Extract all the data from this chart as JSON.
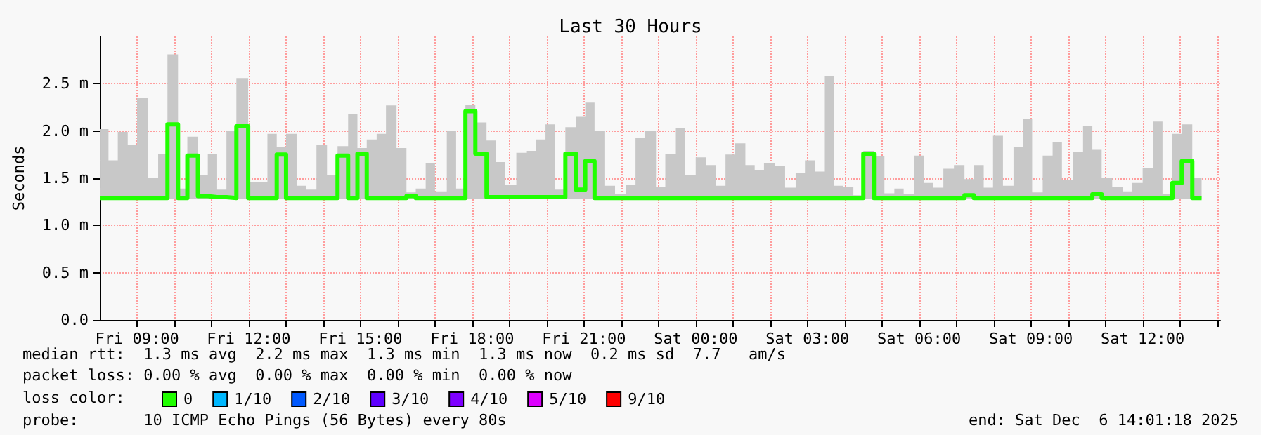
{
  "chart_data": {
    "type": "step",
    "title": "Last 30 Hours",
    "ylabel": "Seconds",
    "x": [
      "2025-12-05T08:00",
      "2025-12-05T08:14",
      "2025-12-05T08:29",
      "2025-12-05T08:45",
      "2025-12-05T09:00",
      "2025-12-05T09:17",
      "2025-12-05T09:34",
      "2025-12-05T09:49",
      "2025-12-05T10:06",
      "2025-12-05T10:21",
      "2025-12-05T10:38",
      "2025-12-05T10:54",
      "2025-12-05T11:09",
      "2025-12-05T11:24",
      "2025-12-05T11:40",
      "2025-12-05T11:59",
      "2025-12-05T12:14",
      "2025-12-05T12:30",
      "2025-12-05T12:45",
      "2025-12-05T13:00",
      "2025-12-05T13:17",
      "2025-12-05T13:32",
      "2025-12-05T13:49",
      "2025-12-05T14:06",
      "2025-12-05T14:23",
      "2025-12-05T14:40",
      "2025-12-05T14:55",
      "2025-12-05T15:10",
      "2025-12-05T15:26",
      "2025-12-05T15:41",
      "2025-12-05T15:58",
      "2025-12-05T16:14",
      "2025-12-05T16:29",
      "2025-12-05T16:45",
      "2025-12-05T17:00",
      "2025-12-05T17:19",
      "2025-12-05T17:34",
      "2025-12-05T17:49",
      "2025-12-05T18:05",
      "2025-12-05T18:23",
      "2025-12-05T18:38",
      "2025-12-05T18:53",
      "2025-12-05T19:11",
      "2025-12-05T19:28",
      "2025-12-05T19:43",
      "2025-12-05T19:58",
      "2025-12-05T20:13",
      "2025-12-05T20:30",
      "2025-12-05T20:47",
      "2025-12-05T21:02",
      "2025-12-05T21:17",
      "2025-12-05T21:34",
      "2025-12-05T21:50",
      "2025-12-05T22:08",
      "2025-12-05T22:23",
      "2025-12-05T22:38",
      "2025-12-05T22:56",
      "2025-12-05T23:11",
      "2025-12-05T23:28",
      "2025-12-05T23:43",
      "2025-12-06T00:00",
      "2025-12-06T00:17",
      "2025-12-06T00:32",
      "2025-12-06T00:48",
      "2025-12-06T01:03",
      "2025-12-06T01:20",
      "2025-12-06T01:35",
      "2025-12-06T01:50",
      "2025-12-06T02:08",
      "2025-12-06T02:24",
      "2025-12-06T02:41",
      "2025-12-06T02:56",
      "2025-12-06T03:12",
      "2025-12-06T03:28",
      "2025-12-06T03:43",
      "2025-12-06T03:58",
      "2025-12-06T04:14",
      "2025-12-06T04:30",
      "2025-12-06T04:47",
      "2025-12-06T05:04",
      "2025-12-06T05:20",
      "2025-12-06T05:35",
      "2025-12-06T05:52",
      "2025-12-06T06:08",
      "2025-12-06T06:23",
      "2025-12-06T06:39",
      "2025-12-06T06:56",
      "2025-12-06T07:13",
      "2025-12-06T07:28",
      "2025-12-06T07:44",
      "2025-12-06T07:59",
      "2025-12-06T08:15",
      "2025-12-06T08:32",
      "2025-12-06T08:47",
      "2025-12-06T09:02",
      "2025-12-06T09:19",
      "2025-12-06T09:35",
      "2025-12-06T09:50",
      "2025-12-06T10:08",
      "2025-12-06T10:24",
      "2025-12-06T10:39",
      "2025-12-06T10:54",
      "2025-12-06T11:11",
      "2025-12-06T11:28",
      "2025-12-06T11:43",
      "2025-12-06T12:00",
      "2025-12-06T12:17",
      "2025-12-06T12:32",
      "2025-12-06T12:48",
      "2025-12-06T13:03",
      "2025-12-06T13:20",
      "2025-12-06T13:35"
    ],
    "series": [
      {
        "name": "0",
        "color": "#20ff00",
        "values": [
          1.29,
          1.29,
          1.29,
          1.29,
          1.29,
          1.29,
          1.29,
          2.07,
          1.29,
          1.74,
          1.31,
          1.3,
          1.3,
          1.29,
          2.05,
          1.29,
          1.29,
          1.29,
          1.75,
          1.29,
          1.29,
          1.29,
          1.29,
          1.29,
          1.74,
          1.29,
          1.76,
          1.29,
          1.29,
          1.29,
          1.29,
          1.31,
          1.29,
          1.29,
          1.29,
          1.29,
          1.29,
          2.21,
          1.76,
          1.3,
          1.3,
          1.3,
          1.3,
          1.3,
          1.3,
          1.3,
          1.3,
          1.76,
          1.38,
          1.68,
          1.29,
          1.29,
          1.29,
          1.29,
          1.29,
          1.29,
          1.29,
          1.29,
          1.29,
          1.29,
          1.29,
          1.29,
          1.29,
          1.29,
          1.29,
          1.29,
          1.29,
          1.29,
          1.29,
          1.29,
          1.29,
          1.29,
          1.29,
          1.29,
          1.29,
          1.29,
          1.29,
          1.76,
          1.29,
          1.29,
          1.29,
          1.29,
          1.29,
          1.29,
          1.29,
          1.29,
          1.29,
          1.32,
          1.29,
          1.29,
          1.29,
          1.29,
          1.29,
          1.29,
          1.29,
          1.29,
          1.29,
          1.29,
          1.29,
          1.29,
          1.33,
          1.29,
          1.29,
          1.29,
          1.29,
          1.29,
          1.29,
          1.29,
          1.45,
          1.68,
          1.29,
          1.29
        ],
        "lower": [
          1.28,
          1.28,
          1.28,
          1.28,
          1.28,
          1.28,
          1.28,
          1.28,
          1.28,
          1.28,
          1.28,
          1.28,
          1.28,
          1.28,
          1.28,
          1.28,
          1.28,
          1.28,
          1.28,
          1.28,
          1.28,
          1.28,
          1.28,
          1.28,
          1.28,
          1.28,
          1.28,
          1.28,
          1.28,
          1.28,
          1.28,
          1.28,
          1.28,
          1.28,
          1.28,
          1.28,
          1.28,
          1.28,
          1.28,
          1.28,
          1.28,
          1.28,
          1.28,
          1.28,
          1.28,
          1.28,
          1.28,
          1.28,
          1.28,
          1.28,
          1.28,
          1.28,
          1.28,
          1.28,
          1.28,
          1.28,
          1.28,
          1.28,
          1.28,
          1.28,
          1.28,
          1.28,
          1.28,
          1.28,
          1.28,
          1.28,
          1.28,
          1.28,
          1.28,
          1.28,
          1.28,
          1.28,
          1.28,
          1.28,
          1.28,
          1.28,
          1.28,
          1.28,
          1.28,
          1.28,
          1.28,
          1.28,
          1.28,
          1.28,
          1.28,
          1.28,
          1.28,
          1.28,
          1.28,
          1.28,
          1.28,
          1.28,
          1.28,
          1.28,
          1.28,
          1.28,
          1.28,
          1.28,
          1.28,
          1.28,
          1.28,
          1.28,
          1.28,
          1.28,
          1.28,
          1.28,
          1.28,
          1.28,
          1.28,
          1.28,
          1.28,
          1.28
        ],
        "upper": [
          2.02,
          1.69,
          1.99,
          1.85,
          2.35,
          1.5,
          1.76,
          2.81,
          1.39,
          1.94,
          1.53,
          1.76,
          1.38,
          2.0,
          2.56,
          1.46,
          1.46,
          1.97,
          1.83,
          1.97,
          1.42,
          1.38,
          1.85,
          1.53,
          1.84,
          2.18,
          1.82,
          1.91,
          1.97,
          2.27,
          1.82,
          1.35,
          1.39,
          1.66,
          1.36,
          2.0,
          1.39,
          2.28,
          2.09,
          1.9,
          1.67,
          1.43,
          1.77,
          1.79,
          1.91,
          2.07,
          1.38,
          2.04,
          2.15,
          2.3,
          2.0,
          1.42,
          1.33,
          1.43,
          1.93,
          2.0,
          1.41,
          1.76,
          2.03,
          1.53,
          1.72,
          1.64,
          1.42,
          1.75,
          1.87,
          1.64,
          1.59,
          1.66,
          1.63,
          1.4,
          1.56,
          1.69,
          1.57,
          2.58,
          1.42,
          1.41,
          1.32,
          1.79,
          1.73,
          1.34,
          1.39,
          1.33,
          1.74,
          1.45,
          1.4,
          1.6,
          1.64,
          1.49,
          1.64,
          1.4,
          1.95,
          1.42,
          1.83,
          2.13,
          1.35,
          1.74,
          1.88,
          1.48,
          1.78,
          2.05,
          1.8,
          1.5,
          1.41,
          1.36,
          1.45,
          1.61,
          2.1,
          1.33,
          1.97,
          2.07,
          1.5,
          1.38
        ]
      },
      {
        "name": "1/10",
        "color": "#00b8ff",
        "values": [
          null,
          null,
          null,
          null,
          null,
          null,
          null,
          null,
          null,
          null,
          null,
          null,
          null,
          null,
          null,
          null,
          null,
          null,
          null,
          null,
          null,
          null,
          null,
          null,
          null,
          null,
          null,
          null,
          null,
          null,
          null,
          null,
          null,
          null,
          null,
          null,
          null,
          null,
          null,
          null,
          null,
          null,
          null,
          null,
          null,
          null,
          null,
          null,
          null,
          null,
          null,
          null,
          null,
          null,
          null,
          null,
          null,
          null,
          null,
          null,
          null,
          null,
          null,
          null,
          null,
          null,
          null,
          null,
          null,
          null,
          null,
          null,
          null,
          null,
          null,
          null,
          null,
          null,
          null,
          null,
          null,
          null,
          null,
          null,
          null,
          null,
          null,
          null,
          null,
          null,
          null,
          null,
          null,
          null,
          null,
          null,
          null,
          null,
          null,
          null,
          null,
          null,
          null,
          null,
          null,
          null,
          null,
          null,
          null,
          null,
          null,
          null
        ]
      },
      {
        "name": "2/10",
        "color": "#0059ff",
        "values": [
          null,
          null,
          null,
          null,
          null,
          null,
          null,
          null,
          null,
          null,
          null,
          null,
          null,
          null,
          null,
          null,
          null,
          null,
          null,
          null,
          null,
          null,
          null,
          null,
          null,
          null,
          null,
          null,
          null,
          null,
          null,
          null,
          null,
          null,
          null,
          null,
          null,
          null,
          null,
          null,
          null,
          null,
          null,
          null,
          null,
          null,
          null,
          null,
          null,
          null,
          null,
          null,
          null,
          null,
          null,
          null,
          null,
          null,
          null,
          null,
          null,
          null,
          null,
          null,
          null,
          null,
          null,
          null,
          null,
          null,
          null,
          null,
          null,
          null,
          null,
          null,
          null,
          null,
          null,
          null,
          null,
          null,
          null,
          null,
          null,
          null,
          null,
          null,
          null,
          null,
          null,
          null,
          null,
          null,
          null,
          null,
          null,
          null,
          null,
          null,
          null,
          null,
          null,
          null,
          null,
          null,
          null,
          null,
          null,
          null,
          null,
          null
        ]
      },
      {
        "name": "3/10",
        "color": "#5e00ff",
        "values": [
          null,
          null,
          null,
          null,
          null,
          null,
          null,
          null,
          null,
          null,
          null,
          null,
          null,
          null,
          null,
          null,
          null,
          null,
          null,
          null,
          null,
          null,
          null,
          null,
          null,
          null,
          null,
          null,
          null,
          null,
          null,
          null,
          null,
          null,
          null,
          null,
          null,
          null,
          null,
          null,
          null,
          null,
          null,
          null,
          null,
          null,
          null,
          null,
          null,
          null,
          null,
          null,
          null,
          null,
          null,
          null,
          null,
          null,
          null,
          null,
          null,
          null,
          null,
          null,
          null,
          null,
          null,
          null,
          null,
          null,
          null,
          null,
          null,
          null,
          null,
          null,
          null,
          null,
          null,
          null,
          null,
          null,
          null,
          null,
          null,
          null,
          null,
          null,
          null,
          null,
          null,
          null,
          null,
          null,
          null,
          null,
          null,
          null,
          null,
          null,
          null,
          null,
          null,
          null,
          null,
          null,
          null,
          null,
          null,
          null,
          null,
          null
        ]
      },
      {
        "name": "4/10",
        "color": "#7e00ff",
        "values": [
          null,
          null,
          null,
          null,
          null,
          null,
          null,
          null,
          null,
          null,
          null,
          null,
          null,
          null,
          null,
          null,
          null,
          null,
          null,
          null,
          null,
          null,
          null,
          null,
          null,
          null,
          null,
          null,
          null,
          null,
          null,
          null,
          null,
          null,
          null,
          null,
          null,
          null,
          null,
          null,
          null,
          null,
          null,
          null,
          null,
          null,
          null,
          null,
          null,
          null,
          null,
          null,
          null,
          null,
          null,
          null,
          null,
          null,
          null,
          null,
          null,
          null,
          null,
          null,
          null,
          null,
          null,
          null,
          null,
          null,
          null,
          null,
          null,
          null,
          null,
          null,
          null,
          null,
          null,
          null,
          null,
          null,
          null,
          null,
          null,
          null,
          null,
          null,
          null,
          null,
          null,
          null,
          null,
          null,
          null,
          null,
          null,
          null,
          null,
          null,
          null,
          null,
          null,
          null,
          null,
          null,
          null,
          null,
          null,
          null,
          null,
          null
        ]
      },
      {
        "name": "5/10",
        "color": "#dd00ff",
        "values": [
          null,
          null,
          null,
          null,
          null,
          null,
          null,
          null,
          null,
          null,
          null,
          null,
          null,
          null,
          null,
          null,
          null,
          null,
          null,
          null,
          null,
          null,
          null,
          null,
          null,
          null,
          null,
          null,
          null,
          null,
          null,
          null,
          null,
          null,
          null,
          null,
          null,
          null,
          null,
          null,
          null,
          null,
          null,
          null,
          null,
          null,
          null,
          null,
          null,
          null,
          null,
          null,
          null,
          null,
          null,
          null,
          null,
          null,
          null,
          null,
          null,
          null,
          null,
          null,
          null,
          null,
          null,
          null,
          null,
          null,
          null,
          null,
          null,
          null,
          null,
          null,
          null,
          null,
          null,
          null,
          null,
          null,
          null,
          null,
          null,
          null,
          null,
          null,
          null,
          null,
          null,
          null,
          null,
          null,
          null,
          null,
          null,
          null,
          null,
          null,
          null,
          null,
          null,
          null,
          null,
          null,
          null,
          null,
          null,
          null,
          null,
          null
        ]
      },
      {
        "name": "9/10",
        "color": "#ff0000",
        "values": [
          null,
          null,
          null,
          null,
          null,
          null,
          null,
          null,
          null,
          null,
          null,
          null,
          null,
          null,
          null,
          null,
          null,
          null,
          null,
          null,
          null,
          null,
          null,
          null,
          null,
          null,
          null,
          null,
          null,
          null,
          null,
          null,
          null,
          null,
          null,
          null,
          null,
          null,
          null,
          null,
          null,
          null,
          null,
          null,
          null,
          null,
          null,
          null,
          null,
          null,
          null,
          null,
          null,
          null,
          null,
          null,
          null,
          null,
          null,
          null,
          null,
          null,
          null,
          null,
          null,
          null,
          null,
          null,
          null,
          null,
          null,
          null,
          null,
          null,
          null,
          null,
          null,
          null,
          null,
          null,
          null,
          null,
          null,
          null,
          null,
          null,
          null,
          null,
          null,
          null,
          null,
          null,
          null,
          null,
          null,
          null,
          null,
          null,
          null,
          null,
          null,
          null,
          null,
          null,
          null,
          null,
          null,
          null,
          null,
          null,
          null,
          null
        ]
      }
    ],
    "legend": "bottom",
    "legend_title": "loss color:",
    "marker": "none",
    "line_style": "solid",
    "grid": true,
    "xlim": [
      "2025-12-05T08:00",
      "2025-12-06T14:05"
    ],
    "xticks": [
      {
        "value": "2025-12-05T09:00",
        "label": "Fri 09:00"
      },
      {
        "value": "2025-12-05T10:00",
        "label": null
      },
      {
        "value": "2025-12-05T11:00",
        "label": null
      },
      {
        "value": "2025-12-05T12:00",
        "label": "Fri 12:00"
      },
      {
        "value": "2025-12-05T13:00",
        "label": null
      },
      {
        "value": "2025-12-05T14:00",
        "label": null
      },
      {
        "value": "2025-12-05T15:00",
        "label": "Fri 15:00"
      },
      {
        "value": "2025-12-05T16:00",
        "label": null
      },
      {
        "value": "2025-12-05T17:00",
        "label": null
      },
      {
        "value": "2025-12-05T18:00",
        "label": "Fri 18:00"
      },
      {
        "value": "2025-12-05T19:00",
        "label": null
      },
      {
        "value": "2025-12-05T20:00",
        "label": null
      },
      {
        "value": "2025-12-05T21:00",
        "label": "Fri 21:00"
      },
      {
        "value": "2025-12-05T22:00",
        "label": null
      },
      {
        "value": "2025-12-05T23:00",
        "label": null
      },
      {
        "value": "2025-12-06T00:00",
        "label": "Sat 00:00"
      },
      {
        "value": "2025-12-06T01:00",
        "label": null
      },
      {
        "value": "2025-12-06T02:00",
        "label": null
      },
      {
        "value": "2025-12-06T03:00",
        "label": "Sat 03:00"
      },
      {
        "value": "2025-12-06T04:00",
        "label": null
      },
      {
        "value": "2025-12-06T05:00",
        "label": null
      },
      {
        "value": "2025-12-06T06:00",
        "label": "Sat 06:00"
      },
      {
        "value": "2025-12-06T07:00",
        "label": null
      },
      {
        "value": "2025-12-06T08:00",
        "label": null
      },
      {
        "value": "2025-12-06T09:00",
        "label": "Sat 09:00"
      },
      {
        "value": "2025-12-06T10:00",
        "label": null
      },
      {
        "value": "2025-12-06T11:00",
        "label": null
      },
      {
        "value": "2025-12-06T12:00",
        "label": "Sat 12:00"
      },
      {
        "value": "2025-12-06T13:00",
        "label": null
      },
      {
        "value": "2025-12-06T14:00",
        "label": null
      }
    ],
    "ylim": [
      0,
      3.0
    ],
    "yticks": [
      {
        "value": 0,
        "label": "0.0"
      },
      {
        "value": 0.5,
        "label": "0.5 m"
      },
      {
        "value": 1.0,
        "label": "1.0 m"
      },
      {
        "value": 1.5,
        "label": "1.5 m"
      },
      {
        "value": 2.0,
        "label": "2.0 m"
      },
      {
        "value": 2.5,
        "label": "2.5 m"
      }
    ],
    "annotations": [
      "median rtt:  1.3 ms avg  2.2 ms max  1.3 ms min  1.3 ms now  0.2 ms sd  7.7   am/s",
      "packet loss: 0.00 % avg  0.00 % max  0.00 % min  0.00 % now",
      "probe:       10 ICMP Echo Pings (56 Bytes) every 80s",
      "end: Sat Dec  6 14:01:18 2025"
    ]
  }
}
